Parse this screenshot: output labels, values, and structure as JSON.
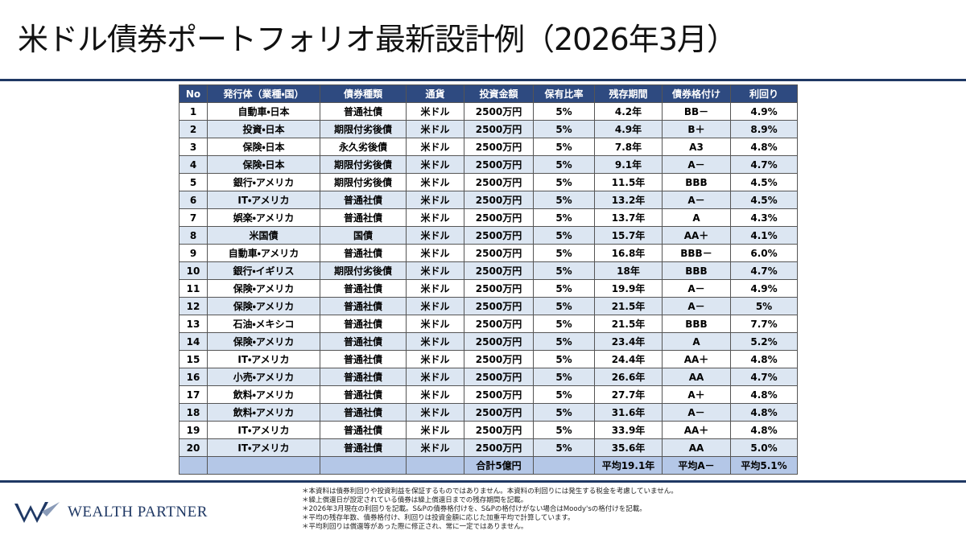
{
  "header": {
    "title": "米ドル債券ポートフォリオ最新設計例（2026年3月）"
  },
  "table": {
    "columns": [
      "No",
      "発行体（業種・国）",
      "債券種類",
      "通貨",
      "投資金額",
      "保有比率",
      "残存期間",
      "債券格付け",
      "利回り"
    ],
    "rows": [
      [
        "1",
        "自動車・日本",
        "普通社債",
        "米ドル",
        "2500万円",
        "5%",
        "4.2年",
        "BB－",
        "4.9%"
      ],
      [
        "2",
        "投資・日本",
        "期限付劣後債",
        "米ドル",
        "2500万円",
        "5%",
        "4.9年",
        "B＋",
        "8.9%"
      ],
      [
        "3",
        "保険・日本",
        "永久劣後債",
        "米ドル",
        "2500万円",
        "5%",
        "7.8年",
        "A3",
        "4.8%"
      ],
      [
        "4",
        "保険・日本",
        "期限付劣後債",
        "米ドル",
        "2500万円",
        "5%",
        "9.1年",
        "A－",
        "4.7%"
      ],
      [
        "5",
        "銀行・アメリカ",
        "期限付劣後債",
        "米ドル",
        "2500万円",
        "5%",
        "11.5年",
        "BBB",
        "4.5%"
      ],
      [
        "6",
        "IT・アメリカ",
        "普通社債",
        "米ドル",
        "2500万円",
        "5%",
        "13.2年",
        "A－",
        "4.5%"
      ],
      [
        "7",
        "娯楽・アメリカ",
        "普通社債",
        "米ドル",
        "2500万円",
        "5%",
        "13.7年",
        "A",
        "4.3%"
      ],
      [
        "8",
        "米国債",
        "国債",
        "米ドル",
        "2500万円",
        "5%",
        "15.7年",
        "AA＋",
        "4.1%"
      ],
      [
        "9",
        "自動車・アメリカ",
        "普通社債",
        "米ドル",
        "2500万円",
        "5%",
        "16.8年",
        "BBB－",
        "6.0%"
      ],
      [
        "10",
        "銀行・イギリス",
        "期限付劣後債",
        "米ドル",
        "2500万円",
        "5%",
        "18年",
        "BBB",
        "4.7%"
      ],
      [
        "11",
        "保険・アメリカ",
        "普通社債",
        "米ドル",
        "2500万円",
        "5%",
        "19.9年",
        "A－",
        "4.9%"
      ],
      [
        "12",
        "保険・アメリカ",
        "普通社債",
        "米ドル",
        "2500万円",
        "5%",
        "21.5年",
        "A－",
        "5%"
      ],
      [
        "13",
        "石油・メキシコ",
        "普通社債",
        "米ドル",
        "2500万円",
        "5%",
        "21.5年",
        "BBB",
        "7.7%"
      ],
      [
        "14",
        "保険・アメリカ",
        "普通社債",
        "米ドル",
        "2500万円",
        "5%",
        "23.4年",
        "A",
        "5.2%"
      ],
      [
        "15",
        "IT・アメリカ",
        "普通社債",
        "米ドル",
        "2500万円",
        "5%",
        "24.4年",
        "AA＋",
        "4.8%"
      ],
      [
        "16",
        "小売・アメリカ",
        "普通社債",
        "米ドル",
        "2500万円",
        "5%",
        "26.6年",
        "AA",
        "4.7%"
      ],
      [
        "17",
        "飲料・アメリカ",
        "普通社債",
        "米ドル",
        "2500万円",
        "5%",
        "27.7年",
        "A＋",
        "4.8%"
      ],
      [
        "18",
        "飲料・アメリカ",
        "普通社債",
        "米ドル",
        "2500万円",
        "5%",
        "31.6年",
        "A－",
        "4.8%"
      ],
      [
        "19",
        "IT・アメリカ",
        "普通社債",
        "米ドル",
        "2500万円",
        "5%",
        "33.9年",
        "AA＋",
        "4.8%"
      ],
      [
        "20",
        "IT・アメリカ",
        "普通社債",
        "米ドル",
        "2500万円",
        "5%",
        "35.6年",
        "AA",
        "5.0%"
      ]
    ],
    "footer": {
      "total": "合計5億円",
      "avg_term": "平均19.1年",
      "avg_rating": "平均A－",
      "avg_yield": "平均5.1%"
    }
  },
  "logo": {
    "text": "WEALTH PARTNER"
  },
  "notes": [
    "＊本資料は債券利回りや投資利益を保証するものではありません。本資料の利回りには発生する税金を考慮していません。",
    "＊繰上償還日が設定されている債券は繰上償還日までの残存期間を記載。",
    "＊2026年3月現在の利回りを記載。S&Pの債券格付けを、S&Pの格付けがない場合はMoody'sの格付けを記載。",
    "＊平均の残存年数、債券格付け、利回りは投資金額に応じた加重平均で計算しています。",
    "＊平均利回りは償還等があった際に修正され、常に一定ではありません。"
  ]
}
